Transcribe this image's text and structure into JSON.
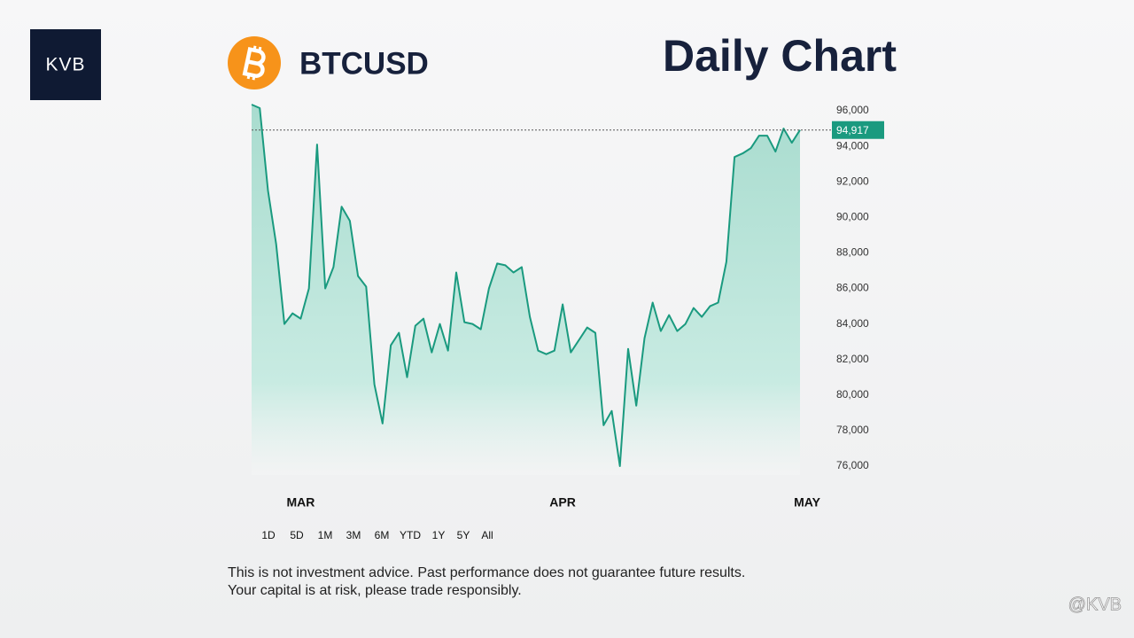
{
  "logo": "KVB",
  "chart_data": {
    "type": "area",
    "symbol": "BTCUSD",
    "title": "Daily Chart",
    "categories": [
      null,
      null,
      null,
      null,
      null,
      null,
      "MAR",
      null,
      null,
      null,
      null,
      null,
      null,
      null,
      null,
      null,
      null,
      null,
      null,
      null,
      null,
      null,
      null,
      null,
      null,
      null,
      null,
      null,
      null,
      null,
      null,
      null,
      null,
      null,
      null,
      null,
      null,
      null,
      "APR",
      null,
      null,
      null,
      null,
      null,
      null,
      null,
      null,
      null,
      null,
      null,
      null,
      null,
      null,
      null,
      null,
      null,
      null,
      null,
      null,
      null,
      null,
      null,
      null,
      null,
      null,
      null,
      null,
      "MAY"
    ],
    "values": [
      96350,
      96150,
      91500,
      88500,
      84000,
      84600,
      84300,
      86000,
      94100,
      86000,
      87200,
      90600,
      89800,
      86700,
      86100,
      80600,
      78400,
      82800,
      83500,
      81000,
      83900,
      84300,
      82400,
      84000,
      82500,
      86900,
      84100,
      84000,
      83700,
      86000,
      87400,
      87300,
      86900,
      87200,
      84400,
      82500,
      82300,
      82500,
      85100,
      82400,
      83100,
      83800,
      83500,
      78300,
      79100,
      76000,
      82600,
      79400,
      83200,
      85200,
      83600,
      84500,
      83600,
      84000,
      84900,
      84400,
      85000,
      85200,
      87500,
      93400,
      93600,
      93900,
      94600,
      94600,
      93700,
      95000,
      94200,
      94917
    ],
    "color": "#1a9a7f",
    "ylim": [
      75500,
      96700
    ],
    "yticks": [
      {
        "value": 76000,
        "label": "76,000"
      },
      {
        "value": 78000,
        "label": "78,000"
      },
      {
        "value": 80000,
        "label": "80,000"
      },
      {
        "value": 82000,
        "label": "82,000"
      },
      {
        "value": 84000,
        "label": "84,000"
      },
      {
        "value": 86000,
        "label": "86,000"
      },
      {
        "value": 88000,
        "label": "88,000"
      },
      {
        "value": 90000,
        "label": "90,000"
      },
      {
        "value": 92000,
        "label": "92,000"
      },
      {
        "value": 94000,
        "label": "94,000"
      },
      {
        "value": 96000,
        "label": "96,000"
      }
    ],
    "current_price": {
      "value": 94917,
      "label": "94,917"
    }
  },
  "range_buttons": [
    "1D",
    "5D",
    "1M",
    "3M",
    "6M",
    "YTD",
    "1Y",
    "5Y",
    "All"
  ],
  "disclaimer": [
    "This is not investment advice. Past performance does not guarantee future results.",
    "Your capital is at risk, please trade responsibly."
  ],
  "watermark": "@KVB"
}
